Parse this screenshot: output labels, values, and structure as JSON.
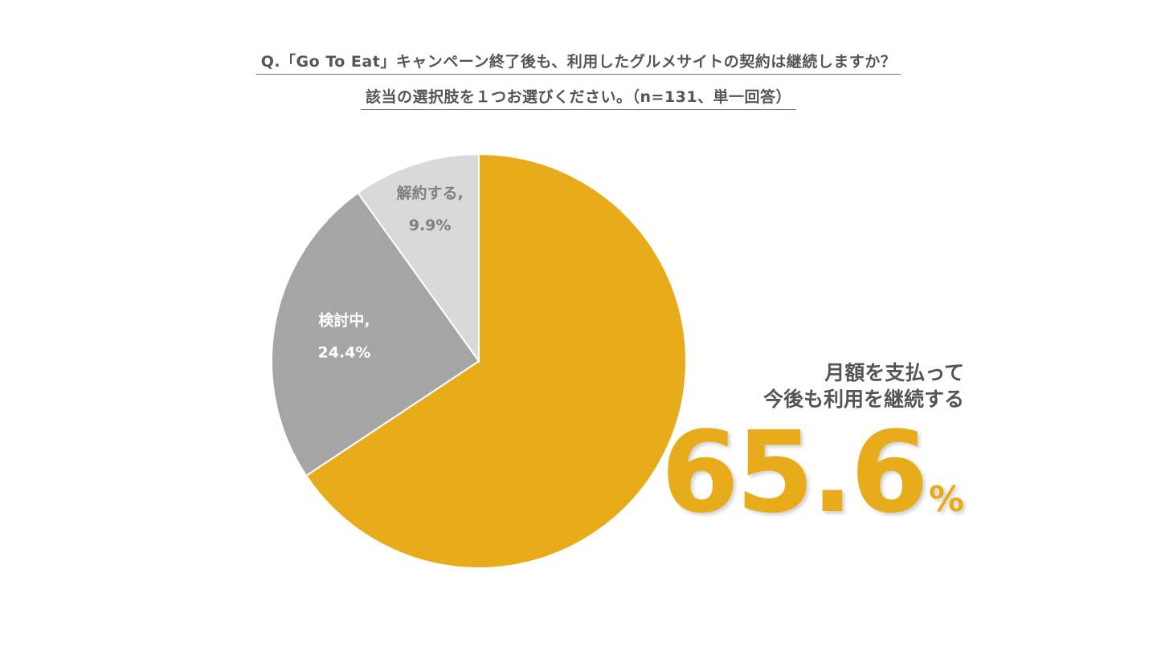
{
  "title": {
    "line1": "Q.「Go To Eat」キャンペーン終了後も、利用したグルメサイトの契約は継続しますか？",
    "line2": "該当の選択肢を１つお選びください。（n=131、単一回答）"
  },
  "callout": {
    "line1": "月額を支払って",
    "line2": "今後も利用を継続する",
    "value": "65.6",
    "unit": "%"
  },
  "colors": {
    "continue": "#E8AC1A",
    "considering": "#A5A5A5",
    "cancel": "#D9D9D9",
    "label_dark": "#7F7F7F",
    "label_light": "#FFFFFF"
  },
  "chart_data": {
    "type": "pie",
    "title": "Q.「Go To Eat」キャンペーン終了後も、利用したグルメサイトの契約は継続しますか？ 該当の選択肢を１つお選びください。（n=131、単一回答）",
    "start_angle_deg": 0,
    "direction": "clockwise",
    "slices": [
      {
        "name": "月額を支払って今後も利用を継続する",
        "value": 65.6,
        "label": "",
        "value_label": ""
      },
      {
        "name": "検討中",
        "value": 24.4,
        "label": "検討中,",
        "value_label": "24.4%"
      },
      {
        "name": "解約する",
        "value": 9.9,
        "label": "解約する,",
        "value_label": "9.9%"
      }
    ]
  }
}
